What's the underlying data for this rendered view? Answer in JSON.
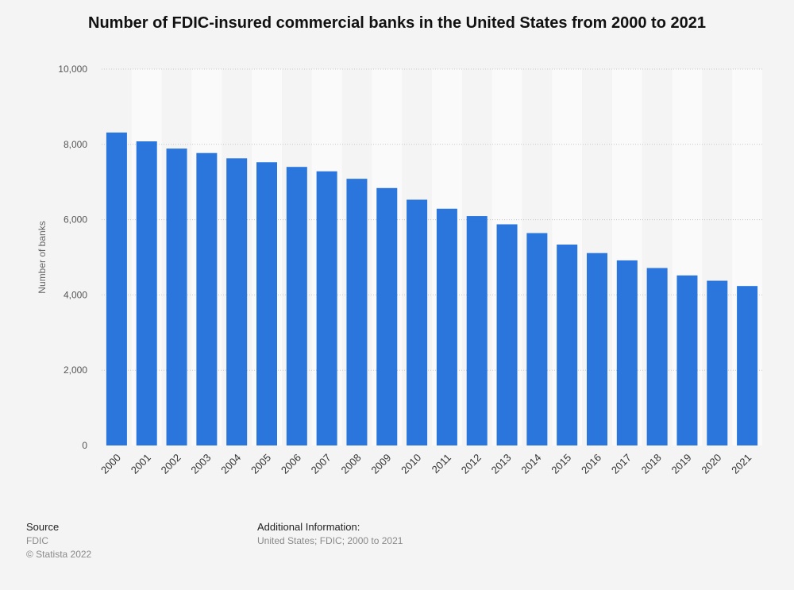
{
  "chart_data": {
    "type": "bar",
    "title": "Number of FDIC-insured commercial banks in the United States from 2000 to 2021",
    "xlabel": "",
    "ylabel": "Number of banks",
    "ylim": [
      0,
      10000
    ],
    "yticks": [
      "0",
      "2,000",
      "4,000",
      "6,000",
      "8,000",
      "10,000"
    ],
    "categories": [
      "2000",
      "2001",
      "2002",
      "2003",
      "2004",
      "2005",
      "2006",
      "2007",
      "2008",
      "2009",
      "2010",
      "2011",
      "2012",
      "2013",
      "2014",
      "2015",
      "2016",
      "2017",
      "2018",
      "2019",
      "2020",
      "2021"
    ],
    "values": [
      8315,
      8080,
      7888,
      7770,
      7630,
      7526,
      7401,
      7284,
      7086,
      6840,
      6530,
      6291,
      6096,
      5876,
      5643,
      5338,
      5112,
      4918,
      4715,
      4518,
      4377,
      4237
    ],
    "bar_color": "#2a76dd",
    "grid": true
  },
  "source": {
    "heading": "Source",
    "line1": "FDIC",
    "line2": "© Statista 2022"
  },
  "additional": {
    "heading": "Additional Information:",
    "text": "United States; FDIC; 2000 to 2021"
  }
}
